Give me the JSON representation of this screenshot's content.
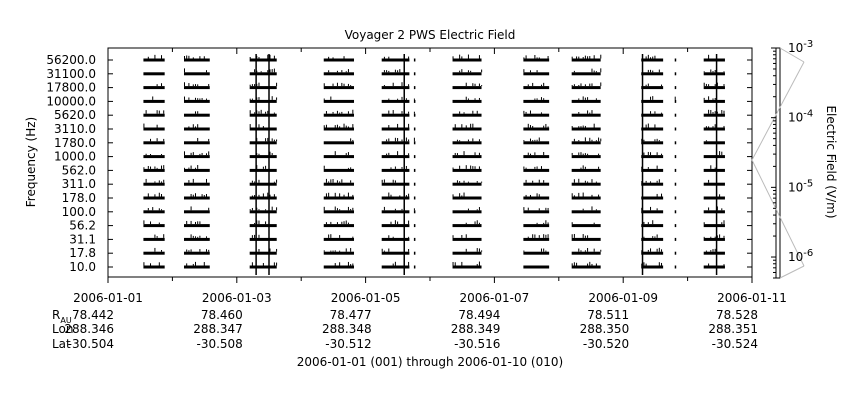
{
  "chart_data": {
    "type": "heatmap",
    "title": "Voyager 2 PWS Electric Field",
    "ylabel": "Frequency (Hz)",
    "colorbar_label": "Electric Field (V/m)",
    "xlabel": "2006-01-01 (001) through 2006-01-10 (010)",
    "frequency_channels": [
      "56200.0",
      "31100.0",
      "17800.0",
      "10000.0",
      "5620.0",
      "3110.0",
      "1780.0",
      "1000.0",
      "562.0",
      "311.0",
      "178.0",
      "100.0",
      "56.2",
      "31.1",
      "17.8",
      "10.0"
    ],
    "x_ticks": [
      "2006-01-01",
      "2006-01-03",
      "2006-01-05",
      "2006-01-07",
      "2006-01-09",
      "2006-01-11"
    ],
    "x_range_days": [
      0,
      10
    ],
    "colorbar_ticks": [
      {
        "base": "10",
        "exp": "-3"
      },
      {
        "base": "10",
        "exp": "-4"
      },
      {
        "base": "10",
        "exp": "-5"
      },
      {
        "base": "10",
        "exp": "-6"
      }
    ],
    "colorbar_scale": "log",
    "colorbar_range": [
      5e-07,
      0.001
    ],
    "grid": false,
    "data_segments_days": [
      [
        0.55,
        0.88
      ],
      [
        1.18,
        1.58
      ],
      [
        2.2,
        2.62
      ],
      [
        3.35,
        3.82
      ],
      [
        4.25,
        4.68
      ],
      [
        4.75,
        4.77
      ],
      [
        5.35,
        5.8
      ],
      [
        6.45,
        6.85
      ],
      [
        7.2,
        7.65
      ],
      [
        8.28,
        8.62
      ],
      [
        8.8,
        8.82
      ],
      [
        9.25,
        9.58
      ]
    ],
    "spikes_days": [
      2.3,
      2.5,
      4.6,
      8.3,
      9.45
    ]
  },
  "ephemeris": {
    "rows": [
      {
        "label": "R",
        "sub": "AU",
        "values": [
          "78.442",
          "78.460",
          "78.477",
          "78.494",
          "78.511",
          "78.528"
        ]
      },
      {
        "label": "Lon",
        "sub": "",
        "values": [
          "288.346",
          "288.347",
          "288.348",
          "288.349",
          "288.350",
          "288.351"
        ]
      },
      {
        "label": "Lat",
        "sub": "",
        "values": [
          "-30.504",
          "-30.508",
          "-30.512",
          "-30.516",
          "-30.520",
          "-30.524"
        ]
      }
    ]
  }
}
